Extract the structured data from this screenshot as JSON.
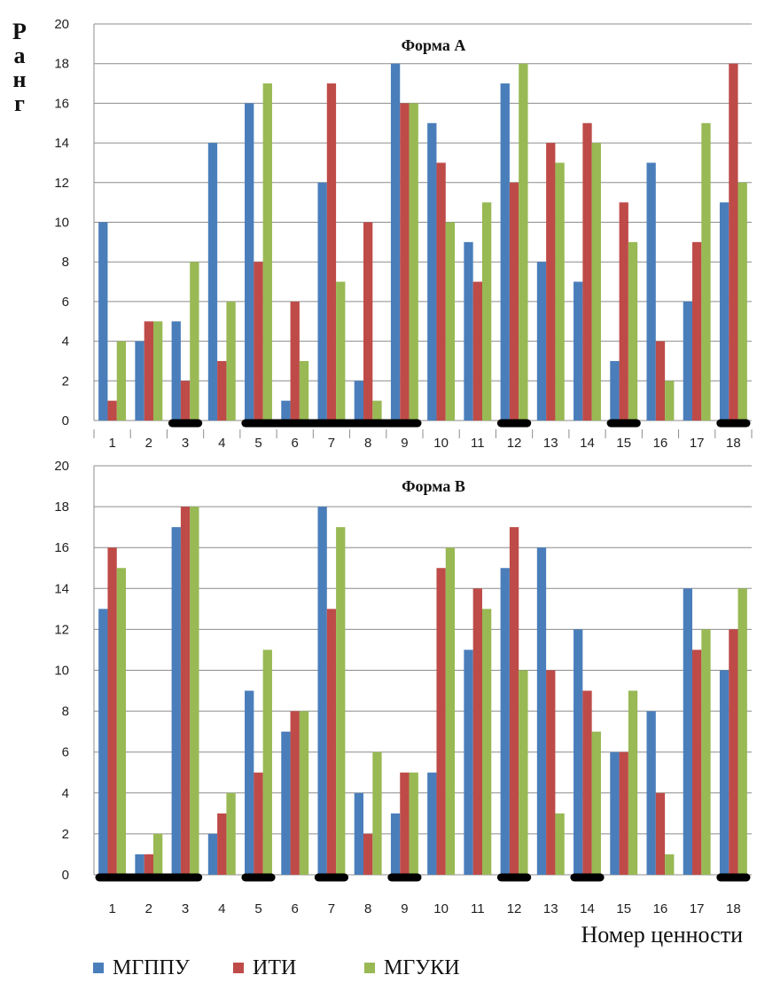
{
  "colors": {
    "МГППУ": "#4a7ebb",
    "ИТИ": "#be4b48",
    "МГУКИ": "#98b954",
    "grid": "#8c8c8c",
    "marker": "#000000"
  },
  "ylabel_letters": [
    "Р",
    "а",
    "н",
    "г"
  ],
  "xlabel": "Номер ценности",
  "legend": [
    {
      "name": "МГППУ",
      "color": "#4a7ebb"
    },
    {
      "name": "ИТИ",
      "color": "#be4b48"
    },
    {
      "name": "МГУКИ",
      "color": "#98b954"
    }
  ],
  "chart_data": [
    {
      "type": "bar",
      "title": "Форма А",
      "categories": [
        "1",
        "2",
        "3",
        "4",
        "5",
        "6",
        "7",
        "8",
        "9",
        "10",
        "11",
        "12",
        "13",
        "14",
        "15",
        "16",
        "17",
        "18"
      ],
      "ylim": [
        0,
        20
      ],
      "yticks": [
        0,
        2,
        4,
        6,
        8,
        10,
        12,
        14,
        16,
        18,
        20
      ],
      "grid": true,
      "series": [
        {
          "name": "МГППУ",
          "values": [
            10,
            4,
            5,
            14,
            16,
            1,
            12,
            2,
            18,
            15,
            9,
            17,
            8,
            7,
            3,
            13,
            6,
            11
          ]
        },
        {
          "name": "ИТИ",
          "values": [
            1,
            5,
            2,
            3,
            8,
            6,
            17,
            10,
            16,
            13,
            7,
            12,
            14,
            15,
            11,
            4,
            9,
            18
          ]
        },
        {
          "name": "МГУКИ",
          "values": [
            4,
            5,
            8,
            6,
            17,
            3,
            7,
            1,
            16,
            10,
            11,
            18,
            13,
            14,
            9,
            2,
            15,
            12
          ]
        }
      ],
      "marked_ranges": [
        [
          3,
          3
        ],
        [
          5,
          9
        ],
        [
          12,
          12
        ],
        [
          15,
          15
        ],
        [
          18,
          18
        ]
      ]
    },
    {
      "type": "bar",
      "title": "Форма В",
      "categories": [
        "1",
        "2",
        "3",
        "4",
        "5",
        "6",
        "7",
        "8",
        "9",
        "10",
        "11",
        "12",
        "13",
        "14",
        "15",
        "16",
        "17",
        "18"
      ],
      "ylim": [
        0,
        20
      ],
      "yticks": [
        0,
        2,
        4,
        6,
        8,
        10,
        12,
        14,
        16,
        18,
        20
      ],
      "grid": true,
      "series": [
        {
          "name": "МГППУ",
          "values": [
            13,
            1,
            17,
            2,
            9,
            7,
            18,
            4,
            3,
            5,
            11,
            15,
            16,
            12,
            6,
            8,
            14,
            10
          ]
        },
        {
          "name": "ИТИ",
          "values": [
            16,
            1,
            18,
            3,
            5,
            8,
            13,
            2,
            5,
            15,
            14,
            17,
            10,
            9,
            6,
            4,
            11,
            12
          ]
        },
        {
          "name": "МГУКИ",
          "values": [
            15,
            2,
            18,
            4,
            11,
            8,
            17,
            6,
            5,
            16,
            13,
            10,
            3,
            7,
            9,
            1,
            12,
            14
          ]
        }
      ],
      "marked_ranges": [
        [
          1,
          3
        ],
        [
          5,
          5
        ],
        [
          7,
          7
        ],
        [
          9,
          9
        ],
        [
          12,
          12
        ],
        [
          14,
          14
        ],
        [
          18,
          18
        ]
      ]
    }
  ]
}
